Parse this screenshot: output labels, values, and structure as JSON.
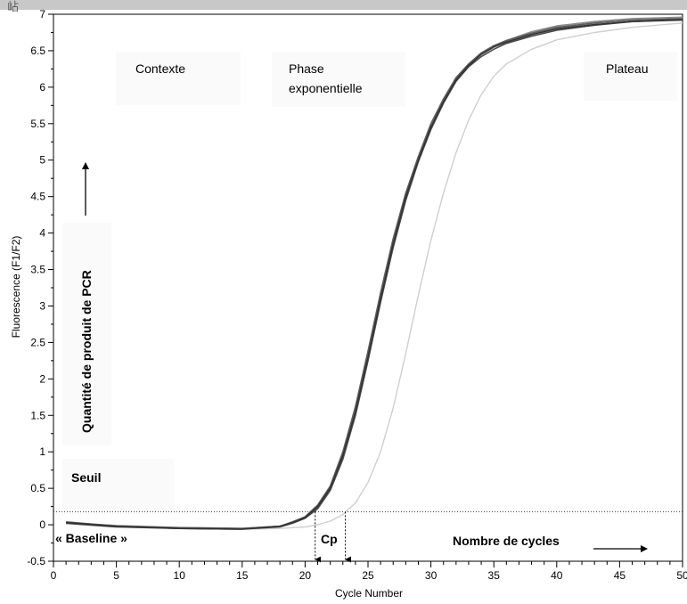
{
  "corner_glyph": "岾",
  "chart_data": {
    "type": "line",
    "xlabel": "Cycle Number",
    "ylabel": "Fluorescence (F1/F2)",
    "xlim": [
      0,
      50
    ],
    "ylim": [
      -0.5,
      7
    ],
    "x_ticks": [
      {
        "value": 0,
        "label": "0"
      },
      {
        "value": 5,
        "label": "5"
      },
      {
        "value": 10,
        "label": "10"
      },
      {
        "value": 15,
        "label": "15"
      },
      {
        "value": 20,
        "label": "20"
      },
      {
        "value": 25,
        "label": "25"
      },
      {
        "value": 30,
        "label": "30"
      },
      {
        "value": 35,
        "label": "35"
      },
      {
        "value": 40,
        "label": "40"
      },
      {
        "value": 45,
        "label": "45"
      },
      {
        "value": 50,
        "label": "50"
      }
    ],
    "y_ticks": [
      {
        "value": -0.5,
        "label": "-0.5"
      },
      {
        "value": 0,
        "label": "0"
      },
      {
        "value": 0.5,
        "label": "0.5"
      },
      {
        "value": 1,
        "label": "1"
      },
      {
        "value": 1.5,
        "label": "1.5"
      },
      {
        "value": 2,
        "label": "2"
      },
      {
        "value": 2.5,
        "label": "2.5"
      },
      {
        "value": 3,
        "label": "3"
      },
      {
        "value": 3.5,
        "label": "3.5"
      },
      {
        "value": 4,
        "label": "4"
      },
      {
        "value": 4.5,
        "label": "4.5"
      },
      {
        "value": 5,
        "label": "5"
      },
      {
        "value": 5.5,
        "label": "5.5"
      },
      {
        "value": 6,
        "label": "6"
      },
      {
        "value": 6.5,
        "label": "6.5"
      },
      {
        "value": 7,
        "label": "7"
      }
    ],
    "grid": false,
    "threshold": 0.18,
    "series": [
      {
        "color": "#333333",
        "x": [
          1,
          5,
          10,
          15,
          18,
          19,
          20,
          21,
          22,
          23,
          24,
          25,
          26,
          27,
          28,
          29,
          30,
          31,
          32,
          33,
          34,
          35,
          36,
          38,
          40,
          43,
          46,
          50
        ],
        "y": [
          0.03,
          -0.02,
          -0.05,
          -0.06,
          -0.02,
          0.03,
          0.1,
          0.25,
          0.5,
          0.95,
          1.55,
          2.3,
          3.1,
          3.85,
          4.5,
          5.0,
          5.45,
          5.8,
          6.1,
          6.3,
          6.45,
          6.55,
          6.62,
          6.72,
          6.8,
          6.86,
          6.9,
          6.92
        ]
      },
      {
        "color": "#4a4a4a",
        "x": [
          1,
          5,
          10,
          15,
          18,
          19,
          20,
          21,
          22,
          23,
          24,
          25,
          26,
          27,
          28,
          29,
          30,
          31,
          32,
          33,
          34,
          35,
          36,
          38,
          40,
          43,
          46,
          50
        ],
        "y": [
          0.02,
          -0.03,
          -0.05,
          -0.06,
          -0.03,
          0.02,
          0.09,
          0.22,
          0.47,
          0.9,
          1.5,
          2.25,
          3.05,
          3.8,
          4.45,
          4.98,
          5.42,
          5.78,
          6.08,
          6.28,
          6.42,
          6.52,
          6.6,
          6.7,
          6.78,
          6.85,
          6.9,
          6.93
        ]
      },
      {
        "color": "#5c5c5c",
        "x": [
          1,
          5,
          10,
          15,
          18,
          19,
          20,
          21,
          22,
          23,
          24,
          25,
          26,
          27,
          28,
          29,
          30,
          31,
          32,
          33,
          34,
          35,
          36,
          38,
          40,
          43,
          46,
          50
        ],
        "y": [
          0.04,
          -0.02,
          -0.04,
          -0.05,
          -0.02,
          0.04,
          0.11,
          0.27,
          0.53,
          1.0,
          1.62,
          2.38,
          3.18,
          3.92,
          4.55,
          5.05,
          5.5,
          5.84,
          6.13,
          6.32,
          6.47,
          6.57,
          6.64,
          6.74,
          6.82,
          6.88,
          6.92,
          6.94
        ]
      },
      {
        "color": "#8a8a8a",
        "x": [
          1,
          5,
          10,
          15,
          18,
          19,
          20,
          21,
          22,
          23,
          24,
          25,
          26,
          27,
          28,
          29,
          30,
          31,
          32,
          33,
          34,
          35,
          36,
          38,
          40,
          43,
          46,
          50
        ],
        "y": [
          0.03,
          -0.01,
          -0.04,
          -0.05,
          -0.02,
          0.03,
          0.1,
          0.23,
          0.48,
          0.93,
          1.52,
          2.28,
          3.08,
          3.83,
          4.48,
          5.02,
          5.46,
          5.8,
          6.1,
          6.3,
          6.46,
          6.56,
          6.64,
          6.76,
          6.84,
          6.9,
          6.94,
          6.96
        ]
      },
      {
        "color": "#cfcfcf",
        "x": [
          1,
          5,
          10,
          15,
          18,
          20,
          21,
          22,
          23,
          24,
          25,
          26,
          27,
          28,
          29,
          30,
          31,
          32,
          33,
          34,
          35,
          36,
          38,
          40,
          43,
          46,
          50
        ],
        "y": [
          0.02,
          -0.03,
          -0.05,
          -0.06,
          -0.05,
          -0.03,
          0.0,
          0.05,
          0.14,
          0.3,
          0.58,
          1.0,
          1.6,
          2.35,
          3.15,
          3.9,
          4.55,
          5.1,
          5.55,
          5.9,
          6.15,
          6.32,
          6.52,
          6.65,
          6.75,
          6.82,
          6.88
        ]
      }
    ],
    "annotations": {
      "contexte": "Contexte",
      "phase": [
        "Phase",
        "exponentielle"
      ],
      "plateau": "Plateau",
      "seuil": "Seuil",
      "baseline": "« Baseline »",
      "cp": "Cp",
      "nombre": "Nombre de cycles",
      "quantite": "Quantité de produit de PCR"
    },
    "cp_markers": [
      20.8,
      23.2
    ]
  }
}
